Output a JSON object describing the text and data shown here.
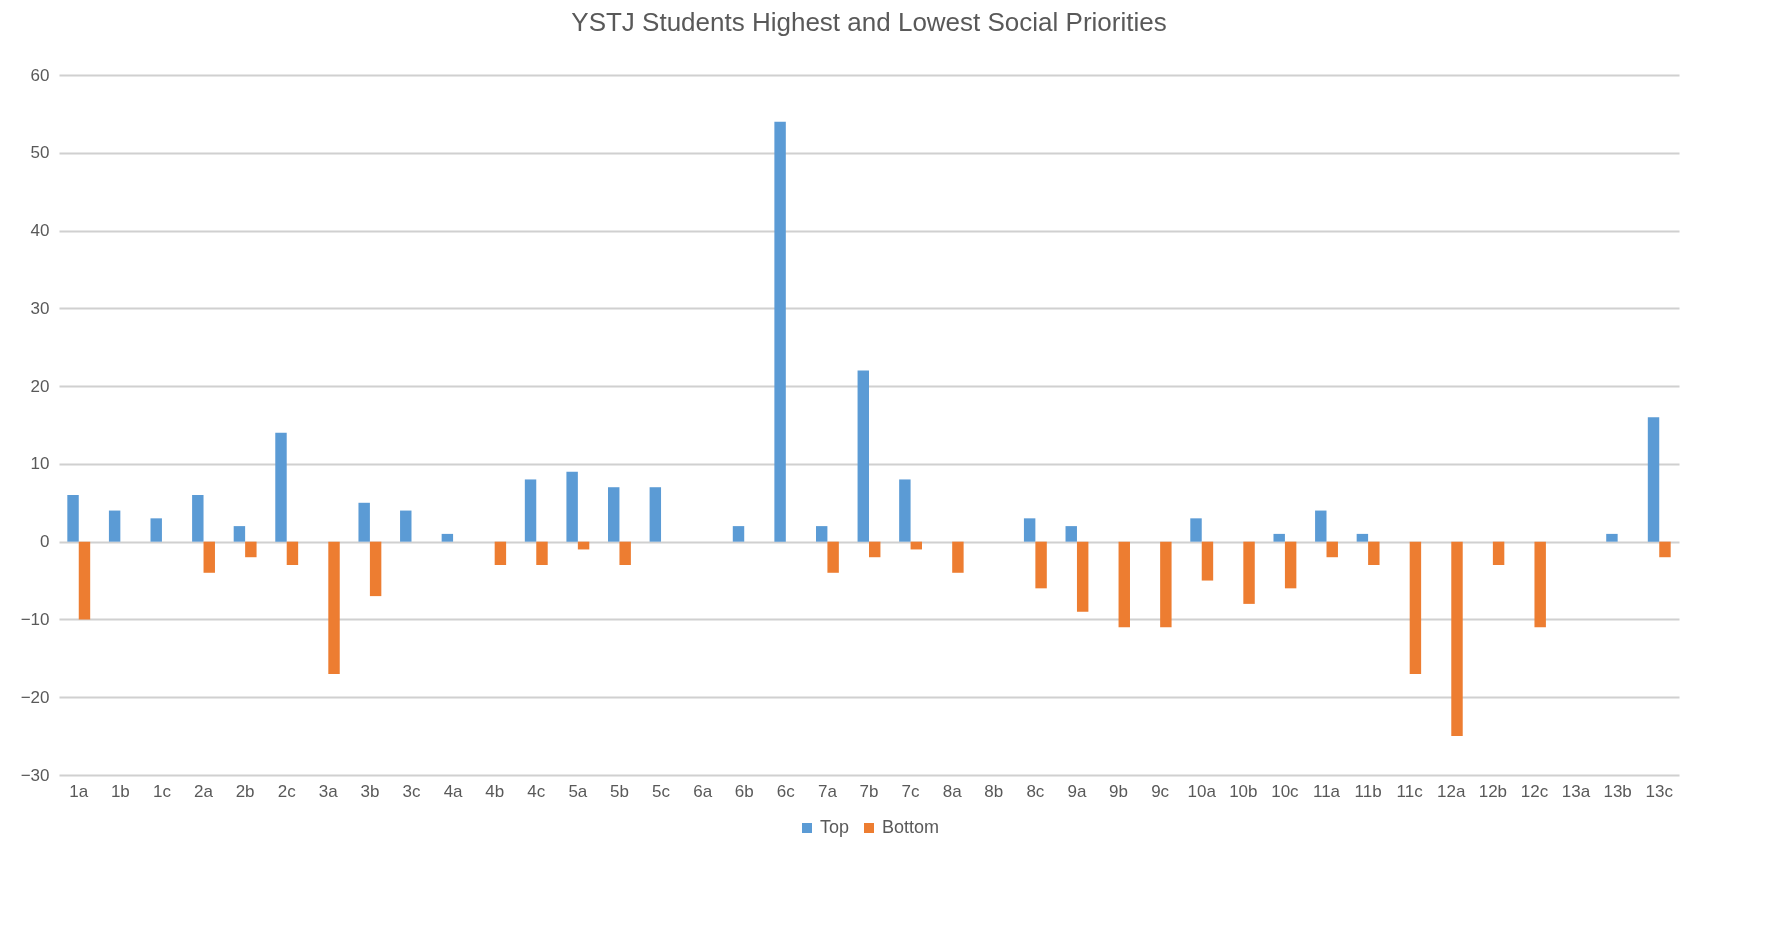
{
  "chart_data": {
    "type": "bar",
    "title": "YSTJ Students Highest and Lowest Social Priorities",
    "categories": [
      "1a",
      "1b",
      "1c",
      "2a",
      "2b",
      "2c",
      "3a",
      "3b",
      "3c",
      "4a",
      "4b",
      "4c",
      "5a",
      "5b",
      "5c",
      "6a",
      "6b",
      "6c",
      "7a",
      "7b",
      "7c",
      "8a",
      "8b",
      "8c",
      "9a",
      "9b",
      "9c",
      "10a",
      "10b",
      "10c",
      "11a",
      "11b",
      "11c",
      "12a",
      "12b",
      "12c",
      "13a",
      "13b",
      "13c"
    ],
    "series": [
      {
        "name": "Top",
        "color": "#5b9bd5",
        "values": [
          6,
          4,
          3,
          6,
          2,
          14,
          0,
          5,
          4,
          1,
          0,
          8,
          9,
          7,
          7,
          0,
          2,
          54,
          2,
          22,
          8,
          0,
          0,
          3,
          2,
          0,
          0,
          3,
          0,
          1,
          4,
          1,
          0,
          0,
          0,
          0,
          0,
          1,
          16
        ]
      },
      {
        "name": "Bottom",
        "color": "#ed7d31",
        "values": [
          -10,
          0,
          0,
          -4,
          -2,
          -3,
          -17,
          -7,
          0,
          0,
          -3,
          -3,
          -1,
          -3,
          0,
          0,
          0,
          0,
          -4,
          -2,
          -1,
          -4,
          0,
          -6,
          -9,
          -11,
          -11,
          -5,
          -8,
          -6,
          -2,
          -3,
          -17,
          -25,
          -3,
          -11,
          0,
          0,
          -2
        ]
      }
    ],
    "ylim": [
      -30,
      60
    ],
    "yticks": [
      -30,
      -20,
      -10,
      0,
      10,
      20,
      30,
      40,
      50,
      60
    ],
    "grid": "y",
    "legend": "bottom"
  }
}
